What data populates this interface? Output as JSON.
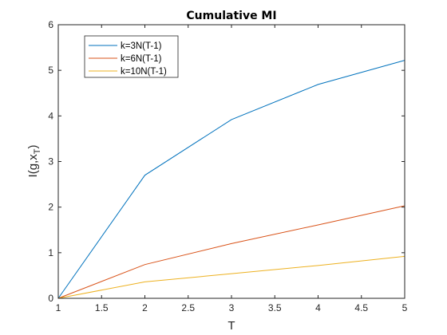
{
  "chart_data": {
    "type": "line",
    "title": "Cumulative MI",
    "xlabel": "T",
    "ylabel": "I(g,x_T)",
    "ylabel_main": "I(g,x",
    "ylabel_sub": "T",
    "ylabel_close": ")",
    "xlim": [
      1,
      5
    ],
    "ylim": [
      0,
      6
    ],
    "xticks": [
      "1",
      "1.5",
      "2",
      "2.5",
      "3",
      "3.5",
      "4",
      "4.5",
      "5"
    ],
    "yticks": [
      "0",
      "1",
      "2",
      "3",
      "4",
      "5",
      "6"
    ],
    "grid": false,
    "legend_position": "top-left",
    "x": [
      1,
      2,
      3,
      4,
      5
    ],
    "series": [
      {
        "name": "k=3N(T-1)",
        "color": "#0072BD",
        "values": [
          0,
          2.7,
          3.92,
          4.69,
          5.22
        ]
      },
      {
        "name": "k=6N(T-1)",
        "color": "#D95319",
        "values": [
          0,
          0.74,
          1.2,
          1.61,
          2.03
        ]
      },
      {
        "name": "k=10N(T-1)",
        "color": "#EDB120",
        "values": [
          0,
          0.36,
          0.54,
          0.72,
          0.92
        ]
      }
    ]
  }
}
